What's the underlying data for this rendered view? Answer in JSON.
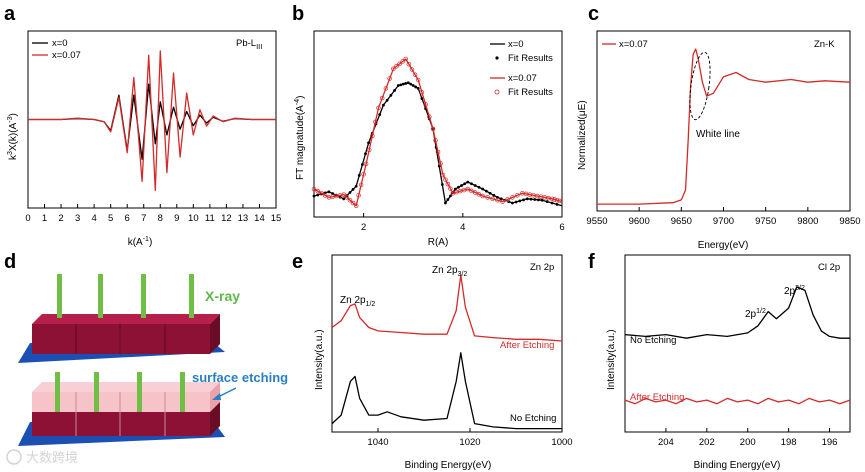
{
  "colors": {
    "black": "#000000",
    "red": "#d42a2a",
    "cube_front": "#8c1134",
    "cube_top": "#b51f4a",
    "cube_side": "#6a0c26",
    "substrate": "#1b4fb3",
    "beam": "#6fbf45",
    "xray_text": "#5fb84a",
    "etch_text": "#2a7fc4",
    "etch_layer": "#f5b8c0"
  },
  "watermark": "大数跨境",
  "chart_data": [
    {
      "panel": "a",
      "type": "line",
      "xlabel": "k(A",
      "xlabel_sup": "-1",
      "xlabel_end": ")",
      "ylabel": "k",
      "ylabel_sup1": "3",
      "ylabel_mid": "X(k)(A",
      "ylabel_sup2": "-3",
      "ylabel_end": ")",
      "xlim": [
        0,
        15
      ],
      "xticks": [
        "0",
        "1",
        "2",
        "3",
        "4",
        "5",
        "6",
        "7",
        "8",
        "9",
        "10",
        "11",
        "12",
        "13",
        "14",
        "15"
      ],
      "annotation": "Pb-L",
      "annotation_sub": "III",
      "series": [
        {
          "name": "x=0",
          "color": "#000000",
          "x": [
            0,
            2,
            3,
            4,
            4.6,
            5.0,
            5.5,
            6.0,
            6.4,
            6.9,
            7.3,
            7.7,
            8.0,
            8.4,
            8.8,
            9.2,
            9.6,
            10.0,
            10.4,
            10.8,
            11.2,
            11.8,
            12.5,
            13.5,
            15
          ],
          "y": [
            0,
            0,
            0.02,
            0,
            -0.05,
            -0.25,
            0.55,
            -0.7,
            0.55,
            -0.9,
            0.8,
            -0.55,
            0.4,
            -0.35,
            0.28,
            -0.22,
            0.18,
            -0.14,
            0.1,
            -0.08,
            0.05,
            -0.04,
            0.02,
            0,
            0
          ]
        },
        {
          "name": "x=0.07",
          "color": "#d42a2a",
          "x": [
            0,
            2,
            3,
            4,
            4.6,
            5.0,
            5.5,
            6.0,
            6.4,
            6.9,
            7.3,
            7.7,
            8.0,
            8.4,
            8.8,
            9.2,
            9.6,
            10.0,
            10.4,
            10.8,
            11.2,
            11.8,
            12.5,
            13.5,
            15
          ],
          "y": [
            0,
            0,
            0.03,
            0,
            -0.05,
            -0.28,
            0.5,
            -0.75,
            0.95,
            -1.4,
            1.45,
            -1.6,
            1.55,
            -1.2,
            1.05,
            -0.85,
            0.6,
            -0.35,
            0.22,
            -0.15,
            0.08,
            -0.05,
            0.03,
            0,
            0
          ]
        }
      ]
    },
    {
      "panel": "b",
      "type": "line+scatter",
      "xlabel": "R(A)",
      "ylabel": "FT magnatude(A",
      "ylabel_sup": "-4",
      "ylabel_end": ")",
      "xlim": [
        1,
        6
      ],
      "xticks": [
        "2",
        "4",
        "6"
      ],
      "series": [
        {
          "name": "x=0",
          "color": "#000000",
          "style": "line",
          "x": [
            1.0,
            1.3,
            1.6,
            1.85,
            2.1,
            2.4,
            2.7,
            2.9,
            3.1,
            3.4,
            3.65,
            3.85,
            4.1,
            4.4,
            4.7,
            5.0,
            5.3,
            5.6,
            6.0
          ],
          "y": [
            0.07,
            0.1,
            0.05,
            0.14,
            0.45,
            0.72,
            0.86,
            0.88,
            0.84,
            0.55,
            0.02,
            0.12,
            0.17,
            0.12,
            0.06,
            0.02,
            0.05,
            0.04,
            0.0
          ]
        },
        {
          "name": "Fit Results",
          "color": "#000000",
          "style": "dots",
          "x": [
            1.0,
            1.3,
            1.6,
            1.85,
            2.1,
            2.4,
            2.7,
            2.9,
            3.1,
            3.4,
            3.65,
            3.85,
            4.1,
            4.4,
            4.7,
            5.0,
            5.3,
            5.6,
            6.0
          ],
          "y": [
            0.07,
            0.1,
            0.05,
            0.14,
            0.45,
            0.72,
            0.86,
            0.88,
            0.84,
            0.55,
            0.02,
            0.12,
            0.17,
            0.12,
            0.06,
            0.02,
            0.05,
            0.04,
            0.0
          ]
        },
        {
          "name": "x=0.07",
          "color": "#d42a2a",
          "style": "line",
          "x": [
            1.0,
            1.3,
            1.6,
            1.85,
            2.05,
            2.3,
            2.6,
            2.85,
            3.1,
            3.4,
            3.6,
            3.8,
            4.1,
            4.4,
            4.8,
            5.2,
            5.5,
            5.8,
            6.0
          ],
          "y": [
            0.12,
            0.06,
            0.08,
            0.0,
            0.3,
            0.7,
            0.98,
            1.05,
            0.9,
            0.55,
            0.22,
            0.09,
            0.12,
            0.07,
            0.03,
            0.09,
            0.07,
            0.05,
            0.03
          ]
        },
        {
          "name": "Fit Results",
          "color": "#d42a2a",
          "style": "circles",
          "x": [
            1.0,
            1.3,
            1.6,
            1.85,
            2.05,
            2.3,
            2.6,
            2.85,
            3.1,
            3.4,
            3.6,
            3.8,
            4.1,
            4.4,
            4.8,
            5.2,
            5.5,
            5.8,
            6.0
          ],
          "y": [
            0.12,
            0.06,
            0.08,
            0.0,
            0.3,
            0.7,
            0.98,
            1.05,
            0.9,
            0.55,
            0.22,
            0.09,
            0.12,
            0.07,
            0.03,
            0.09,
            0.07,
            0.05,
            0.03
          ]
        }
      ]
    },
    {
      "panel": "c",
      "type": "line",
      "xlabel": "Energy(eV)",
      "ylabel": "Normalized(μE)",
      "xlim": [
        9550,
        9850
      ],
      "xticks": [
        "9550",
        "9600",
        "9650",
        "9700",
        "9750",
        "9800",
        "9850"
      ],
      "annotation": "Zn-K",
      "callout": "White line",
      "series": [
        {
          "name": "x=0.07",
          "color": "#d42a2a",
          "x": [
            9550,
            9600,
            9640,
            9650,
            9655,
            9658,
            9661,
            9664,
            9667,
            9670,
            9675,
            9680,
            9688,
            9700,
            9715,
            9730,
            9750,
            9780,
            9800,
            9820,
            9850
          ],
          "y": [
            0.0,
            0.0,
            0.01,
            0.03,
            0.1,
            0.45,
            0.85,
            1.08,
            1.12,
            1.05,
            0.88,
            0.78,
            0.8,
            0.92,
            0.95,
            0.9,
            0.88,
            0.9,
            0.88,
            0.89,
            0.88
          ]
        }
      ]
    },
    {
      "panel": "e",
      "type": "line",
      "xlabel": "Binding Energy(eV)",
      "ylabel": "Intensity(a.u.)",
      "xlim": [
        1050,
        1000
      ],
      "xticks": [
        "1040",
        "1020",
        "1000"
      ],
      "annotation": "Zn 2p",
      "peak_labels": [
        {
          "base": "Zn 2p",
          "sub": "1/2"
        },
        {
          "base": "Zn 2p",
          "sub": "3/2"
        }
      ],
      "series": [
        {
          "name": "After Etching",
          "color": "#d42a2a",
          "x": [
            1050,
            1048,
            1046,
            1045,
            1044,
            1042,
            1040,
            1035,
            1030,
            1025,
            1023,
            1022,
            1021,
            1019,
            1015,
            1010,
            1005,
            1000
          ],
          "y": [
            0.62,
            0.66,
            0.75,
            0.76,
            0.68,
            0.62,
            0.6,
            0.59,
            0.58,
            0.58,
            0.72,
            0.93,
            0.74,
            0.57,
            0.56,
            0.55,
            0.55,
            0.54
          ]
        },
        {
          "name": "No Etching",
          "color": "#000000",
          "x": [
            1050,
            1048,
            1046,
            1045,
            1044,
            1042,
            1040,
            1038,
            1035,
            1030,
            1025,
            1023,
            1022,
            1021,
            1019,
            1015,
            1010,
            1005,
            1000
          ],
          "y": [
            0.05,
            0.1,
            0.3,
            0.33,
            0.2,
            0.1,
            0.1,
            0.12,
            0.09,
            0.07,
            0.08,
            0.3,
            0.47,
            0.3,
            0.05,
            0.03,
            0.02,
            0.02,
            0.02
          ]
        }
      ]
    },
    {
      "panel": "f",
      "type": "line",
      "xlabel": "Binding Energy(eV)",
      "ylabel": "Intensity(a.u.)",
      "xlim": [
        206,
        195
      ],
      "xticks": [
        "204",
        "202",
        "200",
        "198",
        "196"
      ],
      "annotation": "Cl 2p",
      "peak_labels": [
        {
          "base": "2p",
          "sub": "1/2"
        },
        {
          "base": "2p",
          "sub": "3/2"
        }
      ],
      "series": [
        {
          "name": "No Etching",
          "color": "#000000",
          "x": [
            206,
            205,
            204,
            203,
            202,
            201,
            200,
            199.5,
            199,
            198.6,
            198,
            197.6,
            197.2,
            196.8,
            196.4,
            196,
            195.5,
            195
          ],
          "y": [
            0.55,
            0.54,
            0.55,
            0.53,
            0.55,
            0.54,
            0.56,
            0.6,
            0.68,
            0.64,
            0.7,
            0.82,
            0.8,
            0.66,
            0.57,
            0.54,
            0.53,
            0.53
          ]
        },
        {
          "name": "After Etching",
          "color": "#d42a2a",
          "x": [
            206,
            205.5,
            205,
            204.5,
            204,
            203.5,
            203,
            202.5,
            202,
            201.5,
            201,
            200.5,
            200,
            199.5,
            199,
            198.5,
            198,
            197.5,
            197,
            196.5,
            196,
            195.5,
            195
          ],
          "y": [
            0.18,
            0.16,
            0.19,
            0.17,
            0.18,
            0.16,
            0.19,
            0.17,
            0.18,
            0.16,
            0.19,
            0.17,
            0.18,
            0.16,
            0.19,
            0.17,
            0.18,
            0.16,
            0.19,
            0.17,
            0.18,
            0.16,
            0.18
          ]
        }
      ]
    }
  ],
  "panels": {
    "a": "a",
    "b": "b",
    "c": "c",
    "d": "d",
    "e": "e",
    "f": "f"
  },
  "legend_a": {
    "s1": "x=0",
    "s2": "x=0.07"
  },
  "legend_b": {
    "s1": "x=0",
    "s2": "Fit Results",
    "s3": "x=0.07",
    "s4": "Fit Results"
  },
  "legend_c": {
    "s1": "x=0.07"
  },
  "labels_e": {
    "after": "After Etching",
    "none": "No Etching"
  },
  "labels_f": {
    "none": "No Etching",
    "after": "After Etching"
  },
  "schematic": {
    "xray": "X-ray",
    "etching": "surface etching"
  }
}
